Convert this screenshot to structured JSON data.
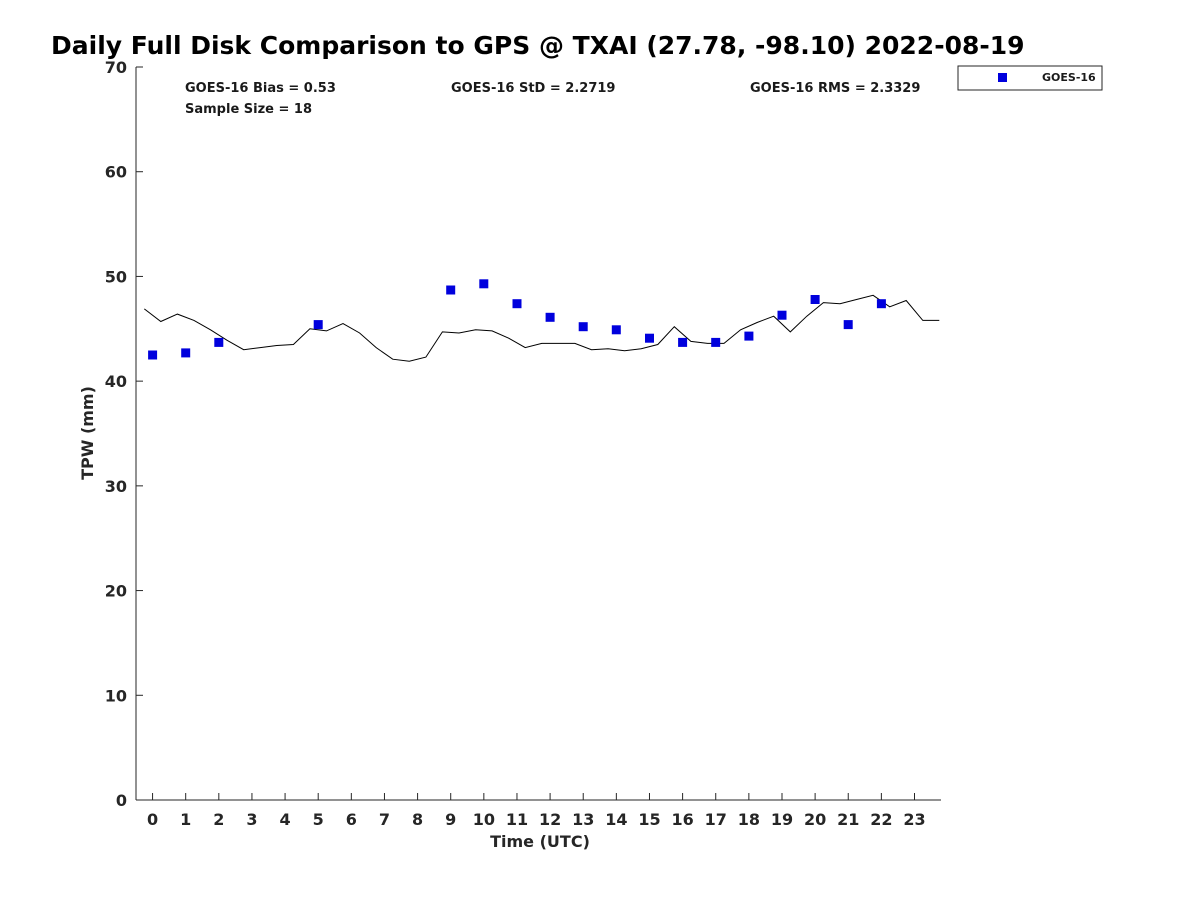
{
  "chart_data": {
    "type": "scatter",
    "title": "Daily Full Disk Comparison to GPS @ TXAI (27.78, -98.10) 2022-08-19",
    "xlabel": "Time (UTC)",
    "ylabel": "TPW (mm)",
    "xlim": [
      -0.5,
      23.8
    ],
    "ylim": [
      0,
      70
    ],
    "x_ticks": [
      0,
      1,
      2,
      3,
      4,
      5,
      6,
      7,
      8,
      9,
      10,
      11,
      12,
      13,
      14,
      15,
      16,
      17,
      18,
      19,
      20,
      21,
      22,
      23
    ],
    "y_ticks": [
      0,
      10,
      20,
      30,
      40,
      50,
      60,
      70
    ],
    "grid": false,
    "legend_position": "top-right-outside",
    "stats": {
      "bias": "GOES-16 Bias = 0.53",
      "sample_size": "Sample Size = 18",
      "std": "GOES-16 StD = 2.2719",
      "rms": "GOES-16 RMS = 2.3329"
    },
    "series": [
      {
        "name": "GOES-16",
        "kind": "scatter",
        "marker": "square",
        "color": "#0000dd",
        "x": [
          0.0,
          1.0,
          2.0,
          5.0,
          9.0,
          10.0,
          11.0,
          12.0,
          13.0,
          14.0,
          15.0,
          16.0,
          17.0,
          18.0,
          19.0,
          20.0,
          21.0,
          22.0
        ],
        "y": [
          42.5,
          42.7,
          43.7,
          45.4,
          48.7,
          49.3,
          47.4,
          46.1,
          45.2,
          44.9,
          44.1,
          43.7,
          43.7,
          44.3,
          46.3,
          47.8,
          45.4,
          47.4
        ]
      },
      {
        "kind": "line",
        "color": "#000000",
        "x": [
          -0.25,
          0.25,
          0.75,
          1.25,
          1.75,
          2.25,
          2.75,
          3.25,
          3.75,
          4.25,
          4.75,
          5.25,
          5.75,
          6.25,
          6.75,
          7.25,
          7.75,
          8.25,
          8.75,
          9.25,
          9.75,
          10.25,
          10.75,
          11.25,
          11.75,
          12.25,
          12.75,
          13.25,
          13.75,
          14.25,
          14.75,
          15.25,
          15.75,
          16.25,
          16.75,
          17.25,
          17.75,
          18.25,
          18.75,
          19.25,
          19.75,
          20.25,
          20.75,
          21.25,
          21.75,
          22.25,
          22.75,
          23.25,
          23.75
        ],
        "y": [
          46.9,
          45.7,
          46.4,
          45.8,
          44.9,
          43.9,
          43.0,
          43.2,
          43.4,
          43.5,
          45.0,
          44.8,
          45.5,
          44.6,
          43.2,
          42.1,
          41.9,
          42.3,
          44.7,
          44.6,
          44.9,
          44.8,
          44.1,
          43.2,
          43.6,
          43.6,
          43.6,
          43.0,
          43.1,
          42.9,
          43.1,
          43.5,
          45.2,
          43.8,
          43.6,
          43.6,
          44.9,
          45.6,
          46.2,
          44.7,
          46.2,
          47.5,
          47.4,
          47.8,
          48.2,
          47.1,
          47.7,
          45.8,
          45.8
        ]
      }
    ]
  }
}
